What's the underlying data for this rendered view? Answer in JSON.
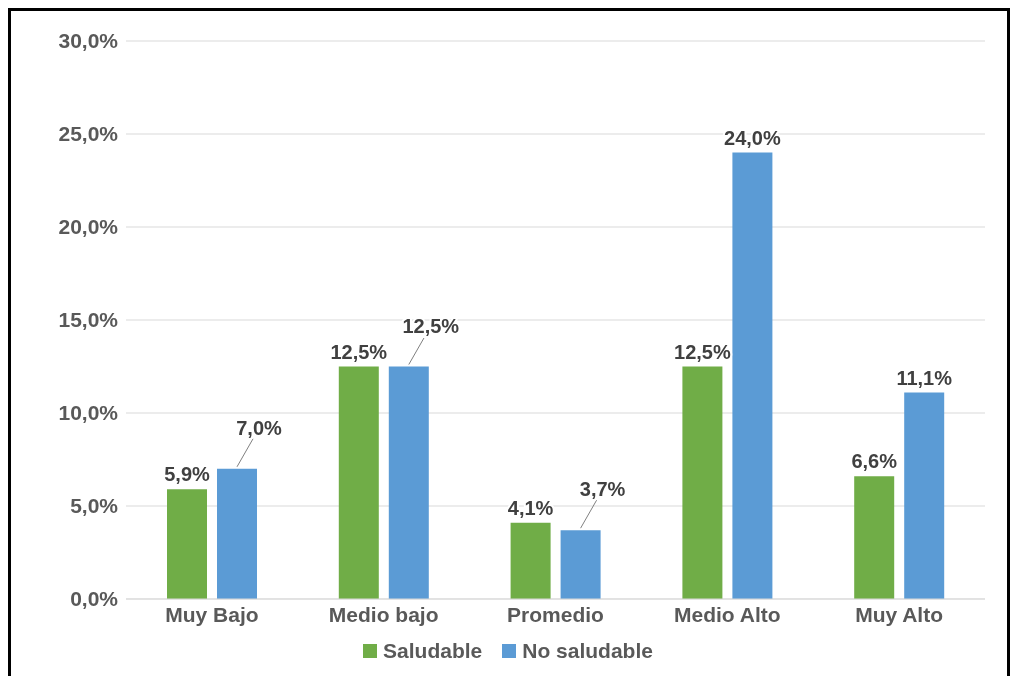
{
  "chart_data": {
    "type": "bar",
    "categories": [
      "Muy Bajo",
      "Medio bajo",
      "Promedio",
      "Medio Alto",
      "Muy Alto"
    ],
    "series": [
      {
        "name": "Saludable",
        "color": "#70ad47",
        "values": [
          5.9,
          12.5,
          4.1,
          12.5,
          6.6
        ],
        "value_labels": [
          "5,9%",
          "12,5%",
          "4,1%",
          "12,5%",
          "6,6%"
        ]
      },
      {
        "name": "No saludable",
        "color": "#5b9bd5",
        "values": [
          7.0,
          12.5,
          3.7,
          24.0,
          11.1
        ],
        "value_labels": [
          "7,0%",
          "12,5%",
          "3,7%",
          "24,0%",
          "11,1%"
        ]
      }
    ],
    "ylim": [
      0,
      30
    ],
    "yticks": [
      {
        "value": 0,
        "label": "0,0%"
      },
      {
        "value": 5,
        "label": "5,0%"
      },
      {
        "value": 10,
        "label": "10,0%"
      },
      {
        "value": 15,
        "label": "15,0%"
      },
      {
        "value": 20,
        "label": "20,0%"
      },
      {
        "value": 25,
        "label": "25,0%"
      },
      {
        "value": 30,
        "label": "30,0%"
      }
    ],
    "grid": "y",
    "legend": "bottom"
  }
}
